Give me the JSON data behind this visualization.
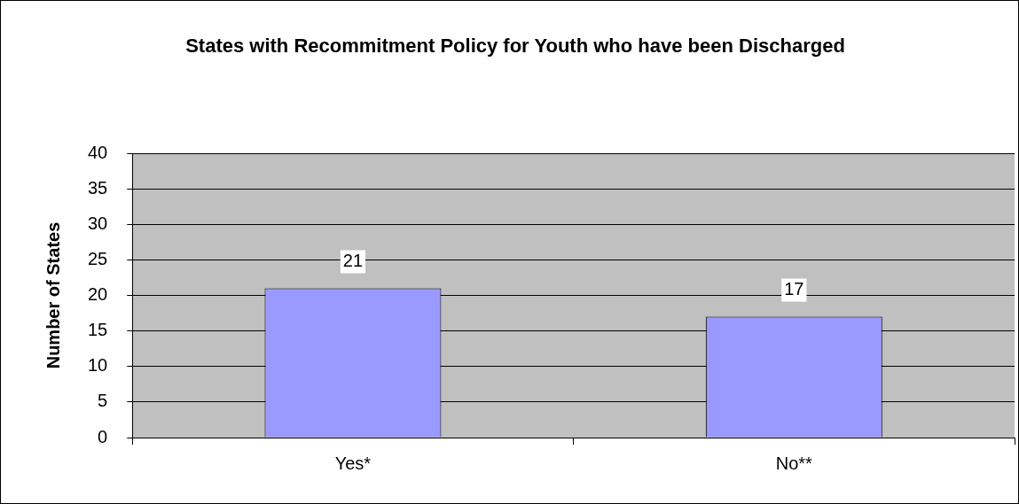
{
  "chart_data": {
    "type": "bar",
    "title": "States with Recommitment Policy for Youth who have been Discharged",
    "ylabel": "Number of States",
    "categories": [
      "Yes*",
      "No**"
    ],
    "values": [
      21,
      17
    ],
    "color": "#9999ff",
    "ylim": [
      0,
      40
    ],
    "yticks": [
      0,
      5,
      10,
      15,
      20,
      25,
      30,
      35,
      40
    ],
    "grid": "y",
    "data_labels": true,
    "legend": false
  }
}
